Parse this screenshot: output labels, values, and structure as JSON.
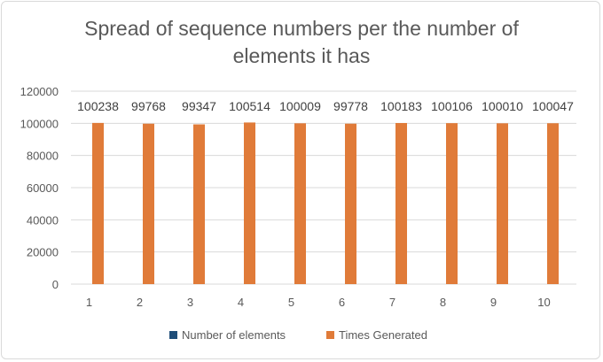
{
  "chart_data": {
    "type": "bar",
    "title_lines": [
      "Spread of sequence numbers per the number of",
      "elements it has"
    ],
    "categories": [
      "1",
      "2",
      "3",
      "4",
      "5",
      "6",
      "7",
      "8",
      "9",
      "10"
    ],
    "series": [
      {
        "name": "Number of elements",
        "color": "#1f4e79",
        "values": [
          1,
          2,
          3,
          4,
          5,
          6,
          7,
          8,
          9,
          10
        ]
      },
      {
        "name": "Times Generated",
        "color": "#e07b39",
        "values": [
          100238,
          99768,
          99347,
          100514,
          100009,
          99778,
          100183,
          100106,
          100010,
          100047
        ]
      }
    ],
    "data_labels": [
      "100238",
      "99768",
      "99347",
      "100514",
      "100009",
      "99778",
      "100183",
      "100106",
      "100010",
      "100047"
    ],
    "y_ticks": [
      "0",
      "20000",
      "40000",
      "60000",
      "80000",
      "100000",
      "120000"
    ],
    "ylim": [
      0,
      120000
    ],
    "gridlines": true,
    "legend_position": "bottom",
    "xlabel": "",
    "ylabel": ""
  }
}
